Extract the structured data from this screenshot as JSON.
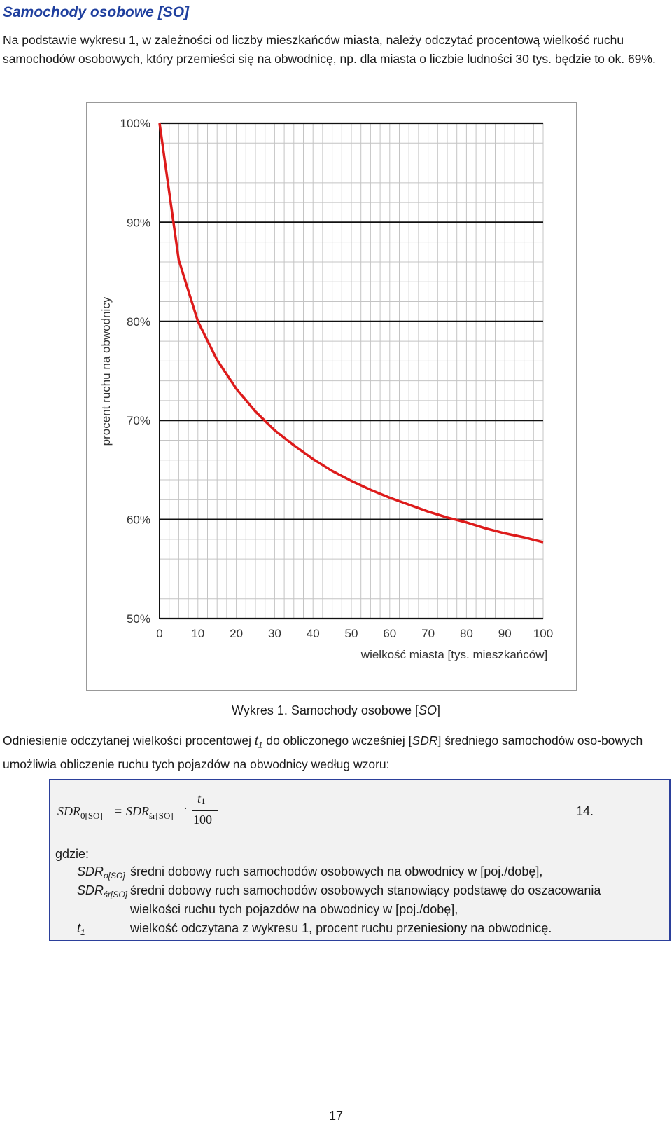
{
  "heading": "Samochody osobowe [SO]",
  "intro": "Na podstawie wykresu 1, w zależności od liczby mieszkańców miasta, należy odczytać procentową wielkość ruchu samochodów osobowych, który przemieści się na obwodnicę, np. dla miasta o liczbie ludności 30 tys. będzie to ok. 69%.",
  "chart_data": {
    "type": "line",
    "xlabel": "wielkość miasta [tys. mieszkańców]",
    "ylabel": "procent ruchu na obwodnicy",
    "xlim": [
      0,
      100
    ],
    "ylim": [
      50,
      100
    ],
    "x_ticks": [
      "0",
      "10",
      "20",
      "30",
      "40",
      "50",
      "60",
      "70",
      "80",
      "90",
      "100"
    ],
    "y_ticks": [
      "50%",
      "60%",
      "70%",
      "80%",
      "90%",
      "100%"
    ],
    "grid": true,
    "series": [
      {
        "color": "#dd1b1b",
        "x": [
          0,
          5,
          10,
          15,
          20,
          25,
          30,
          35,
          40,
          45,
          50,
          55,
          60,
          65,
          70,
          75,
          80,
          85,
          90,
          95,
          100
        ],
        "y": [
          100,
          86.2,
          80.0,
          76.1,
          73.2,
          70.9,
          69.0,
          67.5,
          66.1,
          64.9,
          63.9,
          63.0,
          62.2,
          61.5,
          60.8,
          60.2,
          59.7,
          59.1,
          58.6,
          58.2,
          57.7
        ]
      }
    ]
  },
  "caption": {
    "prefix": "Wykres 1. Samochody osobowe [",
    "italic": "SO",
    "suffix": "]"
  },
  "paragraph2": {
    "part1": "Odniesienie odczytanej wielkości procentowej ",
    "t_symbol": "t",
    "t_sub": "1",
    "part2": " do obliczonego wcześniej [",
    "sdr": "SDR",
    "part3": "] średniego samochodów oso-bowych umożliwia obliczenie ruchu tych pojazdów na obwodnicy według wzoru:"
  },
  "formula": {
    "lhs": "SDR",
    "lhs_sub": "0[SO]",
    "equals": "=",
    "rhs": "SDR",
    "rhs_sub": "śr[SO]",
    "dot": "·",
    "numerator": "t",
    "numerator_sub": "1",
    "denominator": "100",
    "number": "14."
  },
  "legend": {
    "label": "gdzie:",
    "items": [
      {
        "symbol": "SDR",
        "sub": "o[SO]",
        "text": "średni dobowy ruch samochodów osobowych na obwodnicy w [poj./dobę],"
      },
      {
        "symbol": "SDR",
        "sub": "śr[SO]",
        "text": "średni dobowy ruch samochodów osobowych stanowiący podstawę do oszacowania"
      },
      {
        "symbol": "",
        "sub": "",
        "text": "wielkości ruchu tych pojazdów na obwodnicy w [poj./dobę],"
      },
      {
        "symbol": "t",
        "sub": "1",
        "text": "wielkość odczytana z wykresu 1, procent ruchu przeniesiony na obwodnicę."
      }
    ]
  },
  "page_number": "17"
}
